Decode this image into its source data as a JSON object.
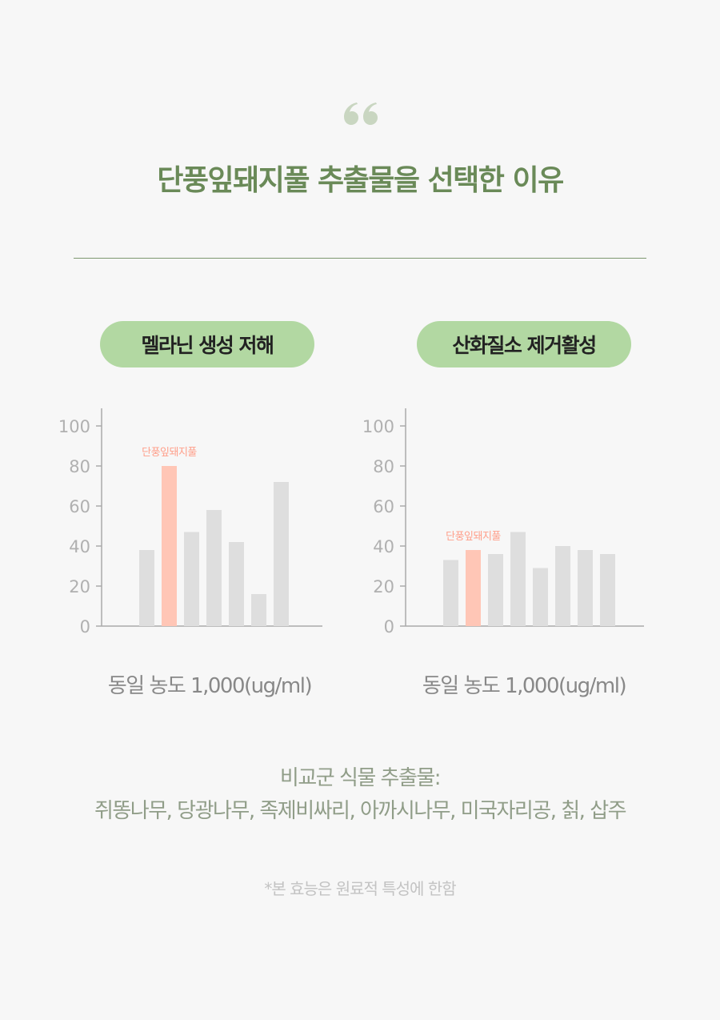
{
  "heading": "단풍잎돼지풀 추출물을 선택한 이유",
  "colors": {
    "accent_green": "#6a8a58",
    "pill_green": "#b2d8a2",
    "highlight_bar": "#ffc6b6",
    "bar": "#dedede"
  },
  "icons": {
    "quote": "double-quote-icon"
  },
  "chart_data": [
    {
      "type": "bar",
      "title": "멜라닌 생성 저해",
      "ylim": [
        0,
        100
      ],
      "yticks": [
        "0",
        "20",
        "40",
        "60",
        "80",
        "100"
      ],
      "values": [
        38,
        80,
        47,
        58,
        42,
        16,
        72
      ],
      "highlight_index": 1,
      "annotation": "단풍잎돼지풀",
      "xlabel": "동일 농도 1,000(ug/ml)",
      "grid": false
    },
    {
      "type": "bar",
      "title": "산화질소 제거활성",
      "ylim": [
        0,
        100
      ],
      "yticks": [
        "0",
        "20",
        "40",
        "60",
        "80",
        "100"
      ],
      "values": [
        33,
        38,
        36,
        47,
        29,
        40,
        38,
        36
      ],
      "highlight_index": 1,
      "annotation": "단풍잎돼지풀",
      "xlabel": "동일 농도 1,000(ug/ml)",
      "grid": false
    }
  ],
  "compare": {
    "line1": "비교군 식물 추출물:",
    "line2": "쥐똥나무, 당광나무, 족제비싸리, 아까시나무, 미국자리공, 칡, 삽주"
  },
  "footnote": "*본 효능은 원료적 특성에 한함"
}
